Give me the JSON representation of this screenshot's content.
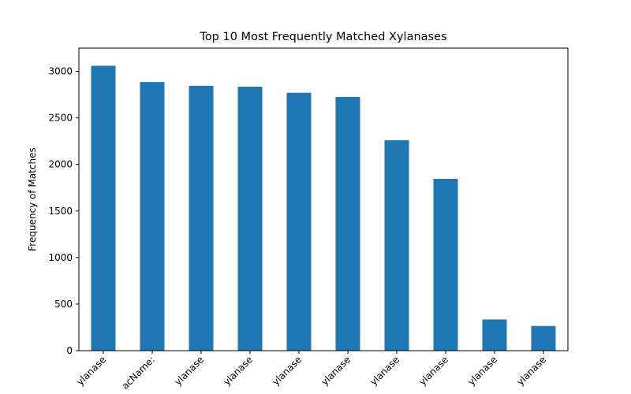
{
  "chart_data": {
    "type": "bar",
    "title": "Top 10 Most Frequently Matched Xylanases",
    "xlabel": "",
    "ylabel": "Frequency of Matches",
    "categories": [
      "ylanase",
      "acName:",
      "ylanase",
      "ylanase",
      "ylanase",
      "ylanase",
      "ylanase",
      "ylanase",
      "ylanase",
      "ylanase"
    ],
    "values": [
      3060,
      2885,
      2845,
      2835,
      2770,
      2725,
      2260,
      1845,
      335,
      265
    ],
    "ylim": [
      0,
      3250
    ],
    "yticks": [
      0,
      500,
      1000,
      1500,
      2000,
      2500,
      3000
    ],
    "grid": false,
    "legend": "none",
    "colors": {
      "bar": "#1f77b4",
      "axis": "#000000"
    }
  }
}
